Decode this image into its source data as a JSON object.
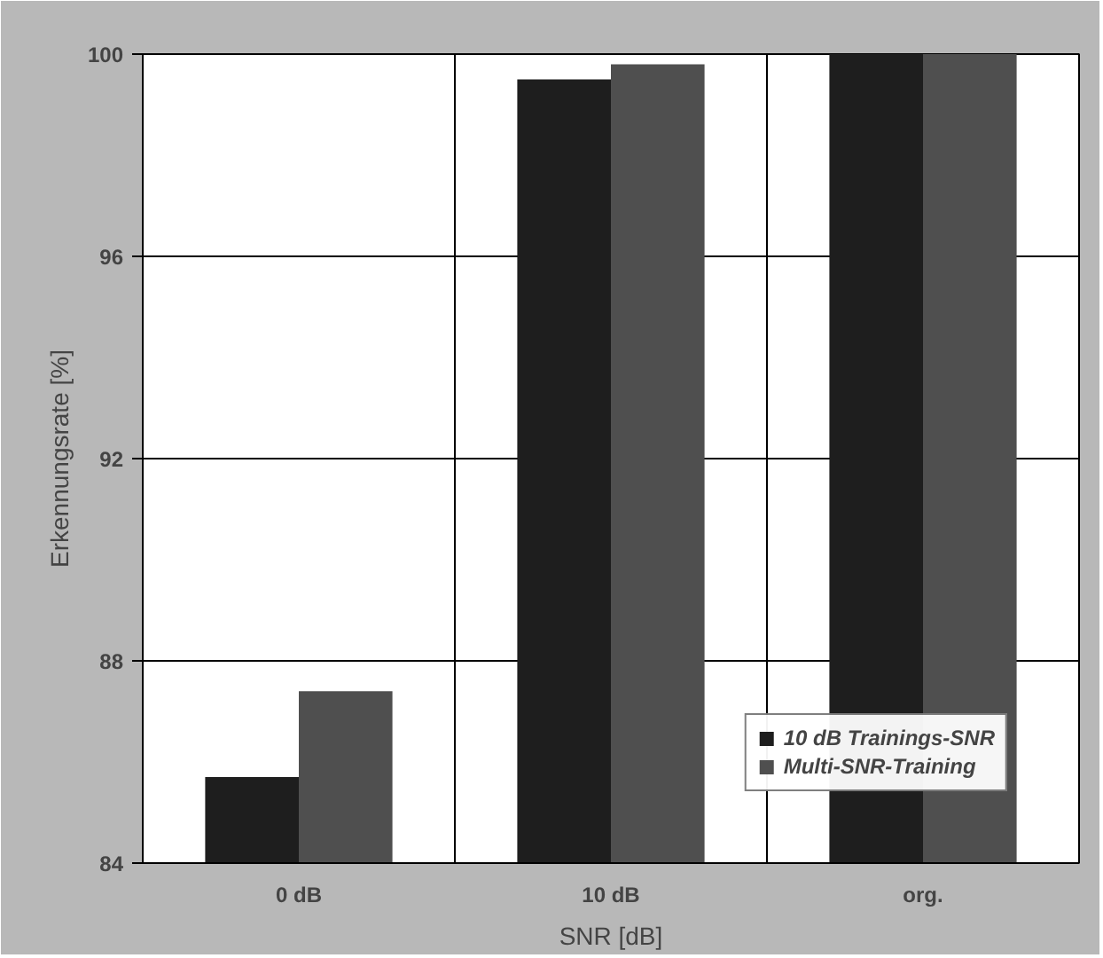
{
  "chart_data": {
    "type": "bar",
    "xlabel": "SNR [dB]",
    "ylabel": "Erkennungsrate [%]",
    "categories": [
      "0 dB",
      "10 dB",
      "org."
    ],
    "series": [
      {
        "name": "10 dB Trainings-SNR",
        "color": "#1e1e1e",
        "values": [
          85.7,
          99.5,
          100
        ]
      },
      {
        "name": "Multi-SNR-Training",
        "color": "#4f4f4f",
        "values": [
          87.4,
          99.8,
          100
        ]
      }
    ],
    "ylim": [
      84,
      100
    ],
    "yticks": [
      84,
      88,
      92,
      96,
      100
    ],
    "grid": true,
    "legend": "bottom right"
  }
}
